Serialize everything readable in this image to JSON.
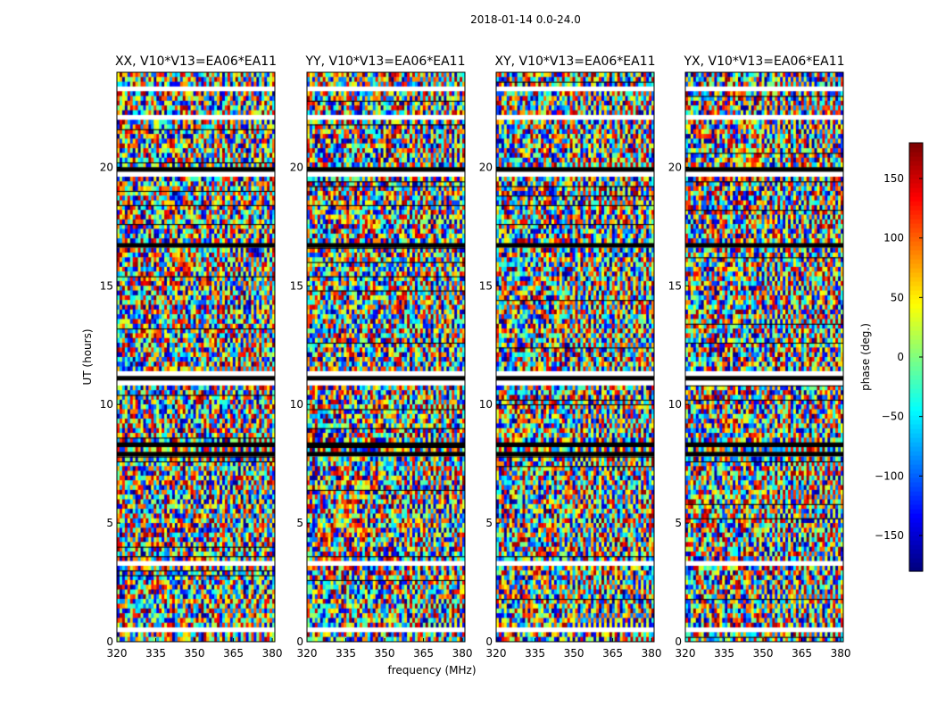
{
  "figure": {
    "suptitle": "2018-01-14 0.0-24.0",
    "xlabel": "frequency (MHz)",
    "ylabel": "UT (hours)",
    "colorbar_label": "phase (deg.)"
  },
  "chart_data": {
    "type": "heatmap",
    "title": "2018-01-14 0.0-24.0",
    "xlabel": "frequency (MHz)",
    "ylabel": "UT (hours)",
    "xlim": [
      320,
      381
    ],
    "ylim": [
      0,
      24
    ],
    "xticks": [
      320,
      335,
      350,
      365,
      380
    ],
    "yticks": [
      0,
      5,
      10,
      15,
      20
    ],
    "colorbar": {
      "label": "phase (deg.)",
      "range": [
        -180,
        180
      ],
      "ticks": [
        -150,
        -100,
        -50,
        0,
        50,
        100,
        150
      ],
      "colormap": "jet"
    },
    "panels": [
      {
        "title": "XX, V10*V13=EA06*EA11",
        "polarization": "XX"
      },
      {
        "title": "YY, V10*V13=EA06*EA11",
        "polarization": "YY"
      },
      {
        "title": "XY, V10*V13=EA06*EA11",
        "polarization": "XY"
      },
      {
        "title": "YX, V10*V13=EA06*EA11",
        "polarization": "YX"
      }
    ],
    "flagged_bands_ut": [
      [
        0.4,
        0.6
      ],
      [
        3.2,
        3.4
      ],
      [
        3.9,
        4.1
      ],
      [
        8.2,
        8.4
      ],
      [
        7.8,
        7.9
      ],
      [
        10.9,
        11.3
      ],
      [
        16.6,
        16.8
      ],
      [
        19.7,
        19.9
      ],
      [
        22.0,
        22.2
      ],
      [
        23.2,
        23.4
      ]
    ]
  }
}
